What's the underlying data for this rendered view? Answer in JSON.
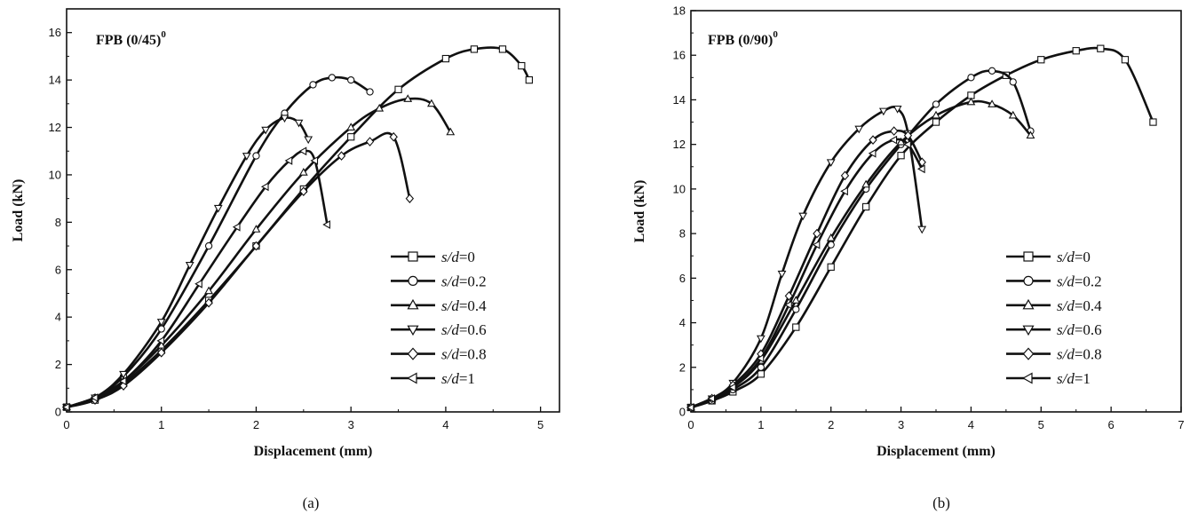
{
  "chart_data": [
    {
      "type": "line",
      "title": "FPB (0/45)",
      "title_superscript": "0",
      "caption": "(a)",
      "xlabel": "Displacement (mm)",
      "ylabel": "Load (kN)",
      "xlim": [
        0,
        5.2
      ],
      "ylim": [
        0,
        17
      ],
      "xticks": [
        0,
        1,
        2,
        3,
        4,
        5
      ],
      "yticks": [
        0,
        2,
        4,
        6,
        8,
        10,
        12,
        14,
        16
      ],
      "legend_position": "lower-right",
      "series": [
        {
          "label_prefix": "s/d",
          "label_value": "=0",
          "marker": "square",
          "x": [
            0.0,
            0.3,
            0.6,
            1.0,
            1.5,
            2.0,
            2.5,
            3.0,
            3.5,
            4.0,
            4.3,
            4.6,
            4.8,
            4.88
          ],
          "y": [
            0.2,
            0.5,
            1.2,
            2.6,
            4.7,
            7.0,
            9.4,
            11.6,
            13.6,
            14.9,
            15.3,
            15.3,
            14.6,
            14.0
          ]
        },
        {
          "label_prefix": "s/d",
          "label_value": "=0.2",
          "marker": "circle",
          "x": [
            0.0,
            0.3,
            0.6,
            1.0,
            1.5,
            2.0,
            2.3,
            2.6,
            2.8,
            3.0,
            3.2
          ],
          "y": [
            0.2,
            0.6,
            1.5,
            3.5,
            7.0,
            10.8,
            12.6,
            13.8,
            14.1,
            14.0,
            13.5
          ]
        },
        {
          "label_prefix": "s/d",
          "label_value": "=0.4",
          "marker": "triangle-up",
          "x": [
            0.0,
            0.3,
            0.6,
            1.0,
            1.5,
            2.0,
            2.5,
            3.0,
            3.3,
            3.6,
            3.85,
            4.05
          ],
          "y": [
            0.2,
            0.6,
            1.3,
            2.8,
            5.1,
            7.7,
            10.1,
            12.0,
            12.8,
            13.2,
            13.0,
            11.8
          ]
        },
        {
          "label_prefix": "s/d",
          "label_value": "=0.6",
          "marker": "triangle-down",
          "x": [
            0.0,
            0.3,
            0.6,
            1.0,
            1.3,
            1.6,
            1.9,
            2.1,
            2.3,
            2.45,
            2.55
          ],
          "y": [
            0.2,
            0.6,
            1.6,
            3.8,
            6.2,
            8.6,
            10.8,
            11.9,
            12.4,
            12.2,
            11.5
          ]
        },
        {
          "label_prefix": "s/d",
          "label_value": "=0.8",
          "marker": "diamond",
          "x": [
            0.0,
            0.3,
            0.6,
            1.0,
            1.5,
            2.0,
            2.5,
            2.9,
            3.2,
            3.45,
            3.62
          ],
          "y": [
            0.2,
            0.5,
            1.1,
            2.5,
            4.6,
            7.0,
            9.3,
            10.8,
            11.4,
            11.6,
            9.0
          ]
        },
        {
          "label_prefix": "s/d",
          "label_value": "=1",
          "marker": "triangle-left",
          "x": [
            0.0,
            0.3,
            0.6,
            1.0,
            1.4,
            1.8,
            2.1,
            2.35,
            2.5,
            2.62,
            2.75
          ],
          "y": [
            0.2,
            0.6,
            1.3,
            3.0,
            5.4,
            7.8,
            9.5,
            10.6,
            11.0,
            10.6,
            7.9
          ]
        }
      ]
    },
    {
      "type": "line",
      "title": "FPB (0/90)",
      "title_superscript": "0",
      "caption": "(b)",
      "xlabel": "Displacement (mm)",
      "ylabel": "Load (kN)",
      "xlim": [
        0,
        7
      ],
      "ylim": [
        0,
        18
      ],
      "xticks": [
        0,
        1,
        2,
        3,
        4,
        5,
        6,
        7
      ],
      "yticks": [
        0,
        2,
        4,
        6,
        8,
        10,
        12,
        14,
        16,
        18
      ],
      "legend_position": "lower-right",
      "series": [
        {
          "label_prefix": "s/d",
          "label_value": "=0",
          "marker": "square",
          "x": [
            0.0,
            0.3,
            0.6,
            1.0,
            1.5,
            2.0,
            2.5,
            3.0,
            3.5,
            4.0,
            4.5,
            5.0,
            5.5,
            5.85,
            6.2,
            6.6
          ],
          "y": [
            0.2,
            0.5,
            0.9,
            1.7,
            3.8,
            6.5,
            9.2,
            11.5,
            13.0,
            14.2,
            15.1,
            15.8,
            16.2,
            16.3,
            15.8,
            13.0
          ]
        },
        {
          "label_prefix": "s/d",
          "label_value": "=0.2",
          "marker": "circle",
          "x": [
            0.0,
            0.3,
            0.6,
            1.0,
            1.5,
            2.0,
            2.5,
            3.0,
            3.5,
            4.0,
            4.3,
            4.6,
            4.85
          ],
          "y": [
            0.2,
            0.5,
            1.0,
            2.0,
            4.6,
            7.5,
            10.0,
            12.0,
            13.8,
            15.0,
            15.3,
            14.8,
            12.6
          ]
        },
        {
          "label_prefix": "s/d",
          "label_value": "=0.4",
          "marker": "triangle-up",
          "x": [
            0.0,
            0.3,
            0.6,
            1.0,
            1.5,
            2.0,
            2.5,
            3.0,
            3.5,
            4.0,
            4.3,
            4.6,
            4.85
          ],
          "y": [
            0.2,
            0.6,
            1.1,
            2.3,
            5.0,
            7.8,
            10.2,
            12.1,
            13.3,
            13.9,
            13.8,
            13.3,
            12.4
          ]
        },
        {
          "label_prefix": "s/d",
          "label_value": "=0.6",
          "marker": "triangle-down",
          "x": [
            0.0,
            0.3,
            0.6,
            1.0,
            1.3,
            1.6,
            2.0,
            2.4,
            2.75,
            2.95,
            3.1,
            3.3
          ],
          "y": [
            0.2,
            0.6,
            1.3,
            3.3,
            6.2,
            8.8,
            11.2,
            12.7,
            13.5,
            13.6,
            12.5,
            8.2
          ]
        },
        {
          "label_prefix": "s/d",
          "label_value": "=0.8",
          "marker": "diamond",
          "x": [
            0.0,
            0.3,
            0.6,
            1.0,
            1.4,
            1.8,
            2.2,
            2.6,
            2.9,
            3.1,
            3.3
          ],
          "y": [
            0.2,
            0.6,
            1.2,
            2.6,
            5.2,
            8.0,
            10.6,
            12.2,
            12.6,
            12.4,
            11.2
          ]
        },
        {
          "label_prefix": "s/d",
          "label_value": "=1",
          "marker": "triangle-left",
          "x": [
            0.0,
            0.3,
            0.6,
            1.0,
            1.4,
            1.8,
            2.2,
            2.6,
            2.9,
            3.1,
            3.3
          ],
          "y": [
            0.2,
            0.6,
            1.1,
            2.4,
            4.8,
            7.5,
            9.9,
            11.6,
            12.2,
            12.0,
            10.9
          ]
        }
      ]
    }
  ]
}
